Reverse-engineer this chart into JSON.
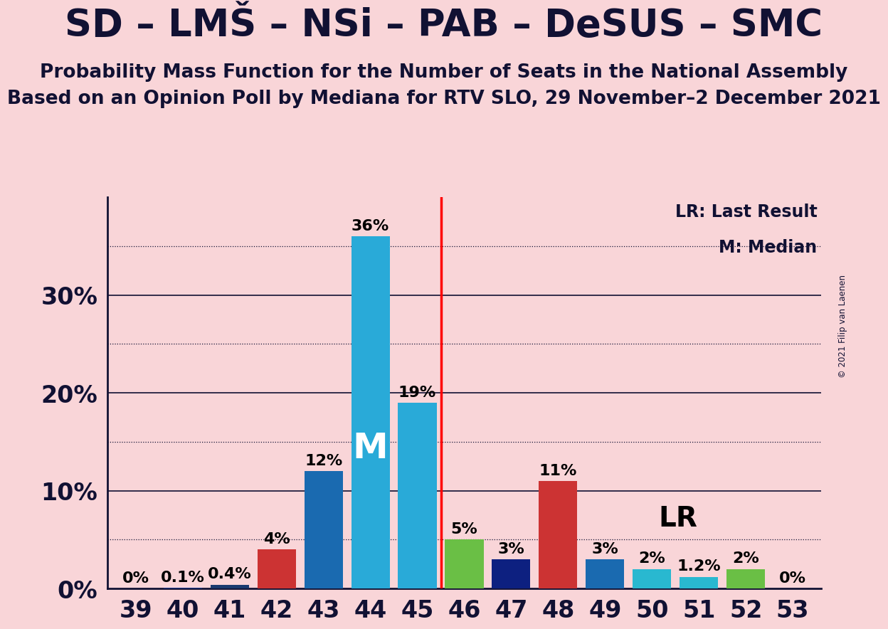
{
  "title": "SD – LMŠ – NSi – PAB – DeSUS – SMC",
  "subtitle1": "Probability Mass Function for the Number of Seats in the National Assembly",
  "subtitle2": "Based on an Opinion Poll by Mediana for RTV SLO, 29 November–2 December 2021",
  "copyright": "© 2021 Filip van Laenen",
  "seats": [
    39,
    40,
    41,
    42,
    43,
    44,
    45,
    46,
    47,
    48,
    49,
    50,
    51,
    52,
    53
  ],
  "values": [
    0.0,
    0.1,
    0.4,
    4.0,
    12.0,
    36.0,
    19.0,
    5.0,
    3.0,
    11.0,
    3.0,
    2.0,
    1.2,
    2.0,
    0.0
  ],
  "labels": [
    "0%",
    "0.1%",
    "0.4%",
    "4%",
    "12%",
    "36%",
    "19%",
    "5%",
    "3%",
    "11%",
    "3%",
    "2%",
    "1.2%",
    "2%",
    "0%"
  ],
  "bar_colors": [
    "#cc3333",
    "#1a3a8f",
    "#1a3a6f",
    "#cc3333",
    "#1a6ab0",
    "#29aad8",
    "#29aad8",
    "#6abf45",
    "#0d2080",
    "#cc3333",
    "#1a6ab0",
    "#29b8d0",
    "#29b8d0",
    "#6abf45",
    "#cc3333"
  ],
  "median_seat": 44,
  "median_label": "M",
  "lr_seat": 50,
  "lr_label": "LR",
  "red_line_x": 45.5,
  "background_color": "#f9d5d8",
  "ylim_max": 40,
  "solid_yticks": [
    10,
    20,
    30
  ],
  "dotted_yticks": [
    5,
    15,
    25,
    35
  ],
  "ytick_labels_pos": [
    0,
    10,
    20,
    30
  ],
  "ytick_labels": [
    "0%",
    "10%",
    "20%",
    "30%"
  ],
  "legend_lr": "LR: Last Result",
  "legend_m": "M: Median",
  "title_fontsize": 38,
  "subtitle_fontsize": 19,
  "label_fontsize": 16,
  "tick_fontsize": 24,
  "bar_width": 0.82,
  "xlim": [
    38.4,
    53.6
  ]
}
